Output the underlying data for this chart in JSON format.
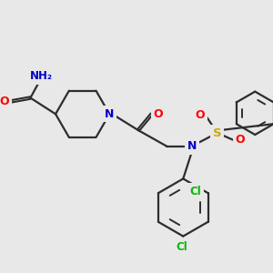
{
  "background_color": "#e8e8e8",
  "bond_color": "#2d2d2d",
  "atom_colors": {
    "N": "#0000cc",
    "O": "#ff0000",
    "S": "#ccaa00",
    "Cl": "#00bb00",
    "C": "#2d2d2d"
  },
  "figsize": [
    3.0,
    3.0
  ],
  "dpi": 100
}
